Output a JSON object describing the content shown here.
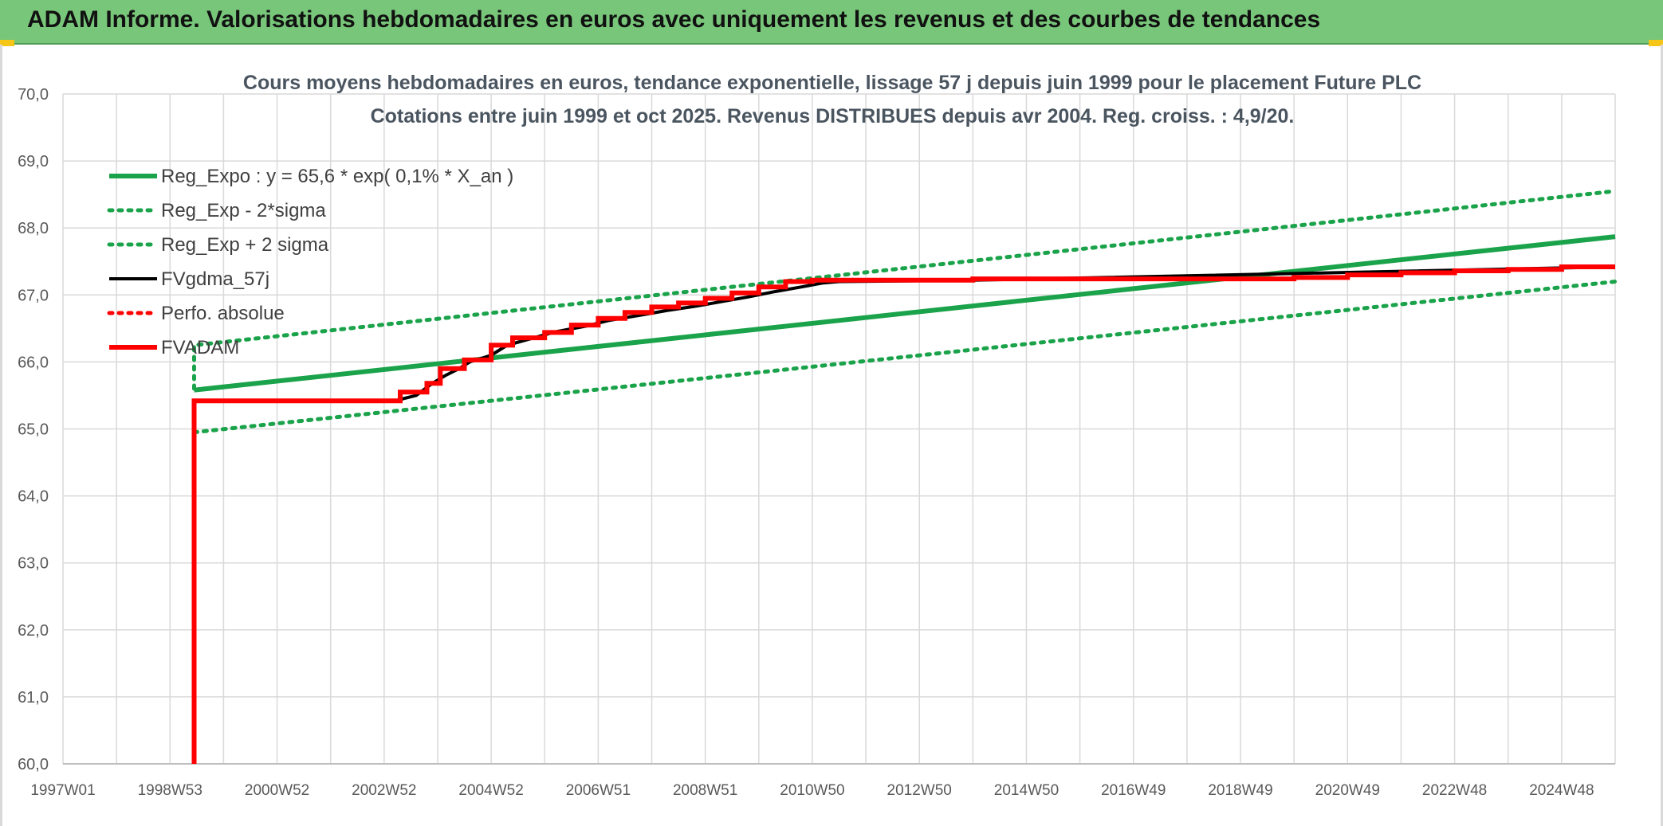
{
  "banner": {
    "title": "ADAM Informe. Valorisations hebdomadaires en euros avec uniquement les revenus et des courbes de tendances"
  },
  "chart_data": {
    "type": "line",
    "title": "Cours moyens hebdomadaires en euros, tendance exponentielle, lissage 57 j depuis juin 1999 pour le placement Future PLC",
    "subtitle": "Cotations entre juin 1999 et oct 2025. Revenus DISTRIBUES depuis avr 2004. Reg. croiss. : 4,9/20.",
    "xlabel": "",
    "ylabel": "",
    "xlim": [
      1997.0,
      2026.0
    ],
    "ylim": [
      60.0,
      70.0
    ],
    "y_ticks": [
      "60,0",
      "61,0",
      "62,0",
      "63,0",
      "64,0",
      "65,0",
      "66,0",
      "67,0",
      "68,0",
      "69,0",
      "70,0"
    ],
    "y_tick_values": [
      60,
      61,
      62,
      63,
      64,
      65,
      66,
      67,
      68,
      69,
      70
    ],
    "x_ticks": [
      "1997W01",
      "1998W53",
      "2000W52",
      "2002W52",
      "2004W52",
      "2006W51",
      "2008W51",
      "2010W50",
      "2012W50",
      "2014W50",
      "2016W49",
      "2018W49",
      "2020W49",
      "2022W48",
      "2024W48"
    ],
    "x_tick_values": [
      1997.0,
      1999.0,
      2001.0,
      2003.0,
      2005.0,
      2007.0,
      2009.0,
      2011.0,
      2013.0,
      2015.0,
      2017.0,
      2019.0,
      2021.0,
      2023.0,
      2025.0
    ],
    "grid": true,
    "legend_position": "top-left",
    "series": [
      {
        "name": "Reg_Expo : y = 65,6 * exp( 0,1% *  X_an )",
        "color": "#1aa34a",
        "style": "solid",
        "x": [
          1999.45,
          2026.0
        ],
        "y": [
          65.58,
          67.87
        ]
      },
      {
        "name": "Reg_Exp - 2*sigma",
        "color": "#1aa34a",
        "style": "dotted",
        "x": [
          1999.45,
          2026.0
        ],
        "y": [
          64.95,
          67.2
        ]
      },
      {
        "name": "Reg_Exp + 2 sigma",
        "color": "#1aa34a",
        "style": "dotted",
        "x": [
          1999.45,
          1999.45,
          2026.0
        ],
        "y": [
          65.6,
          66.25,
          68.55
        ]
      },
      {
        "name": "FVgdma_57j",
        "color": "#000000",
        "style": "solid",
        "x": [
          1999.45,
          1999.45,
          2003.2,
          2003.6,
          2003.9,
          2004.15,
          2004.4,
          2004.6,
          2005.0,
          2005.3,
          2005.8,
          2006.2,
          2006.8,
          2007.2,
          2007.8,
          2008.3,
          2008.8,
          2009.3,
          2009.8,
          2010.3,
          2010.8,
          2011.2,
          2011.5,
          2014.0,
          2026.0
        ],
        "y": [
          60.0,
          65.42,
          65.42,
          65.5,
          65.68,
          65.8,
          65.9,
          66.0,
          66.1,
          66.25,
          66.36,
          66.45,
          66.54,
          66.62,
          66.7,
          66.77,
          66.83,
          66.9,
          66.97,
          67.05,
          67.12,
          67.18,
          67.2,
          67.22,
          67.42
        ]
      },
      {
        "name": "Perfo. absolue",
        "color": "#ff0000",
        "style": "dotted",
        "x": [],
        "y": []
      },
      {
        "name": "FVADAM",
        "color": "#ff0000",
        "style": "solid",
        "x": [
          1999.45,
          1999.45,
          2003.3,
          2003.3,
          2003.8,
          2003.8,
          2004.05,
          2004.05,
          2004.5,
          2004.5,
          2005.0,
          2005.0,
          2005.4,
          2005.4,
          2006.0,
          2006.0,
          2006.5,
          2006.5,
          2007.0,
          2007.0,
          2007.5,
          2007.5,
          2008.0,
          2008.0,
          2008.5,
          2008.5,
          2009.0,
          2009.0,
          2009.5,
          2009.5,
          2010.0,
          2010.0,
          2010.5,
          2010.5,
          2011.0,
          2011.0,
          2014.0,
          2014.0,
          2020.0,
          2020.0,
          2021.0,
          2021.0,
          2022.0,
          2022.0,
          2023.0,
          2023.0,
          2024.0,
          2024.0,
          2025.0,
          2025.0,
          2026.0
        ],
        "y": [
          60.0,
          65.42,
          65.42,
          65.55,
          65.55,
          65.68,
          65.68,
          65.9,
          65.9,
          66.03,
          66.03,
          66.25,
          66.25,
          66.36,
          66.36,
          66.44,
          66.44,
          66.55,
          66.55,
          66.65,
          66.65,
          66.74,
          66.74,
          66.82,
          66.82,
          66.88,
          66.88,
          66.95,
          66.95,
          67.03,
          67.03,
          67.12,
          67.12,
          67.2,
          67.2,
          67.22,
          67.22,
          67.24,
          67.24,
          67.26,
          67.26,
          67.3,
          67.3,
          67.33,
          67.33,
          67.36,
          67.36,
          67.38,
          67.38,
          67.42,
          67.42
        ]
      }
    ]
  }
}
